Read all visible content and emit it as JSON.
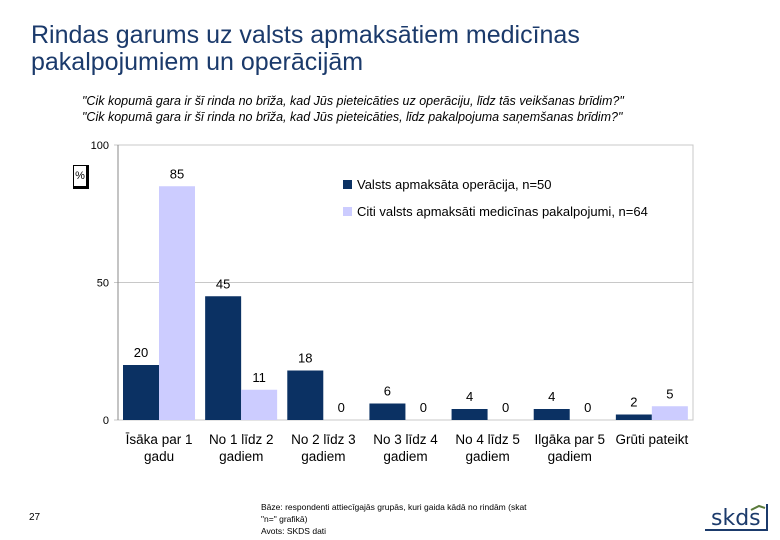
{
  "title": "Rindas garums uz valsts apmaksātiem medicīnas pakalpojumiem un operācijām",
  "questions": [
    "\"Cik kopumā gara ir šī rinda no brīža, kad Jūs pieteicāties uz operāciju, līdz tās veikšanas brīdim?\"",
    "\"Cik kopumā gara ir šī rinda no brīža, kad Jūs pieteicāties, līdz pakalpojuma saņemšanas brīdim?\""
  ],
  "unit_label": "%",
  "page_number": "27",
  "footnote": {
    "line1": "Bāze: respondenti attiecīgajās grupās, kuri gaida kādā no rindām (skat",
    "line2": "\"n=\" grafikā)",
    "line3": "Avots: SKDS dati"
  },
  "logo_text": "skds",
  "colors": {
    "series1": "#0b3163",
    "series2": "#ccccff",
    "title": "#1b3a6b",
    "grid": "#c8c8c8"
  },
  "chart_data": {
    "type": "bar",
    "title": "",
    "xlabel": "",
    "ylabel": "%",
    "ylim": [
      0,
      100
    ],
    "yticks": [
      0,
      50,
      100
    ],
    "grid": true,
    "legend_position": "top-right",
    "categories": [
      [
        "Īsāka par 1",
        "gadu"
      ],
      [
        "No 1 līdz 2",
        "gadiem"
      ],
      [
        "No 2 līdz 3",
        "gadiem"
      ],
      [
        "No 3 līdz 4",
        "gadiem"
      ],
      [
        "No 4 līdz 5",
        "gadiem"
      ],
      [
        "Ilgāka par 5",
        "gadiem"
      ],
      [
        "Grūti pateikt"
      ]
    ],
    "series": [
      {
        "name": "Valsts apmaksāta operācija, n=50",
        "values": [
          20,
          45,
          18,
          6,
          4,
          4,
          2
        ]
      },
      {
        "name": "Citi valsts apmaksāti medicīnas pakalpojumi, n=64",
        "values": [
          85,
          11,
          0,
          0,
          0,
          0,
          5
        ]
      }
    ]
  }
}
